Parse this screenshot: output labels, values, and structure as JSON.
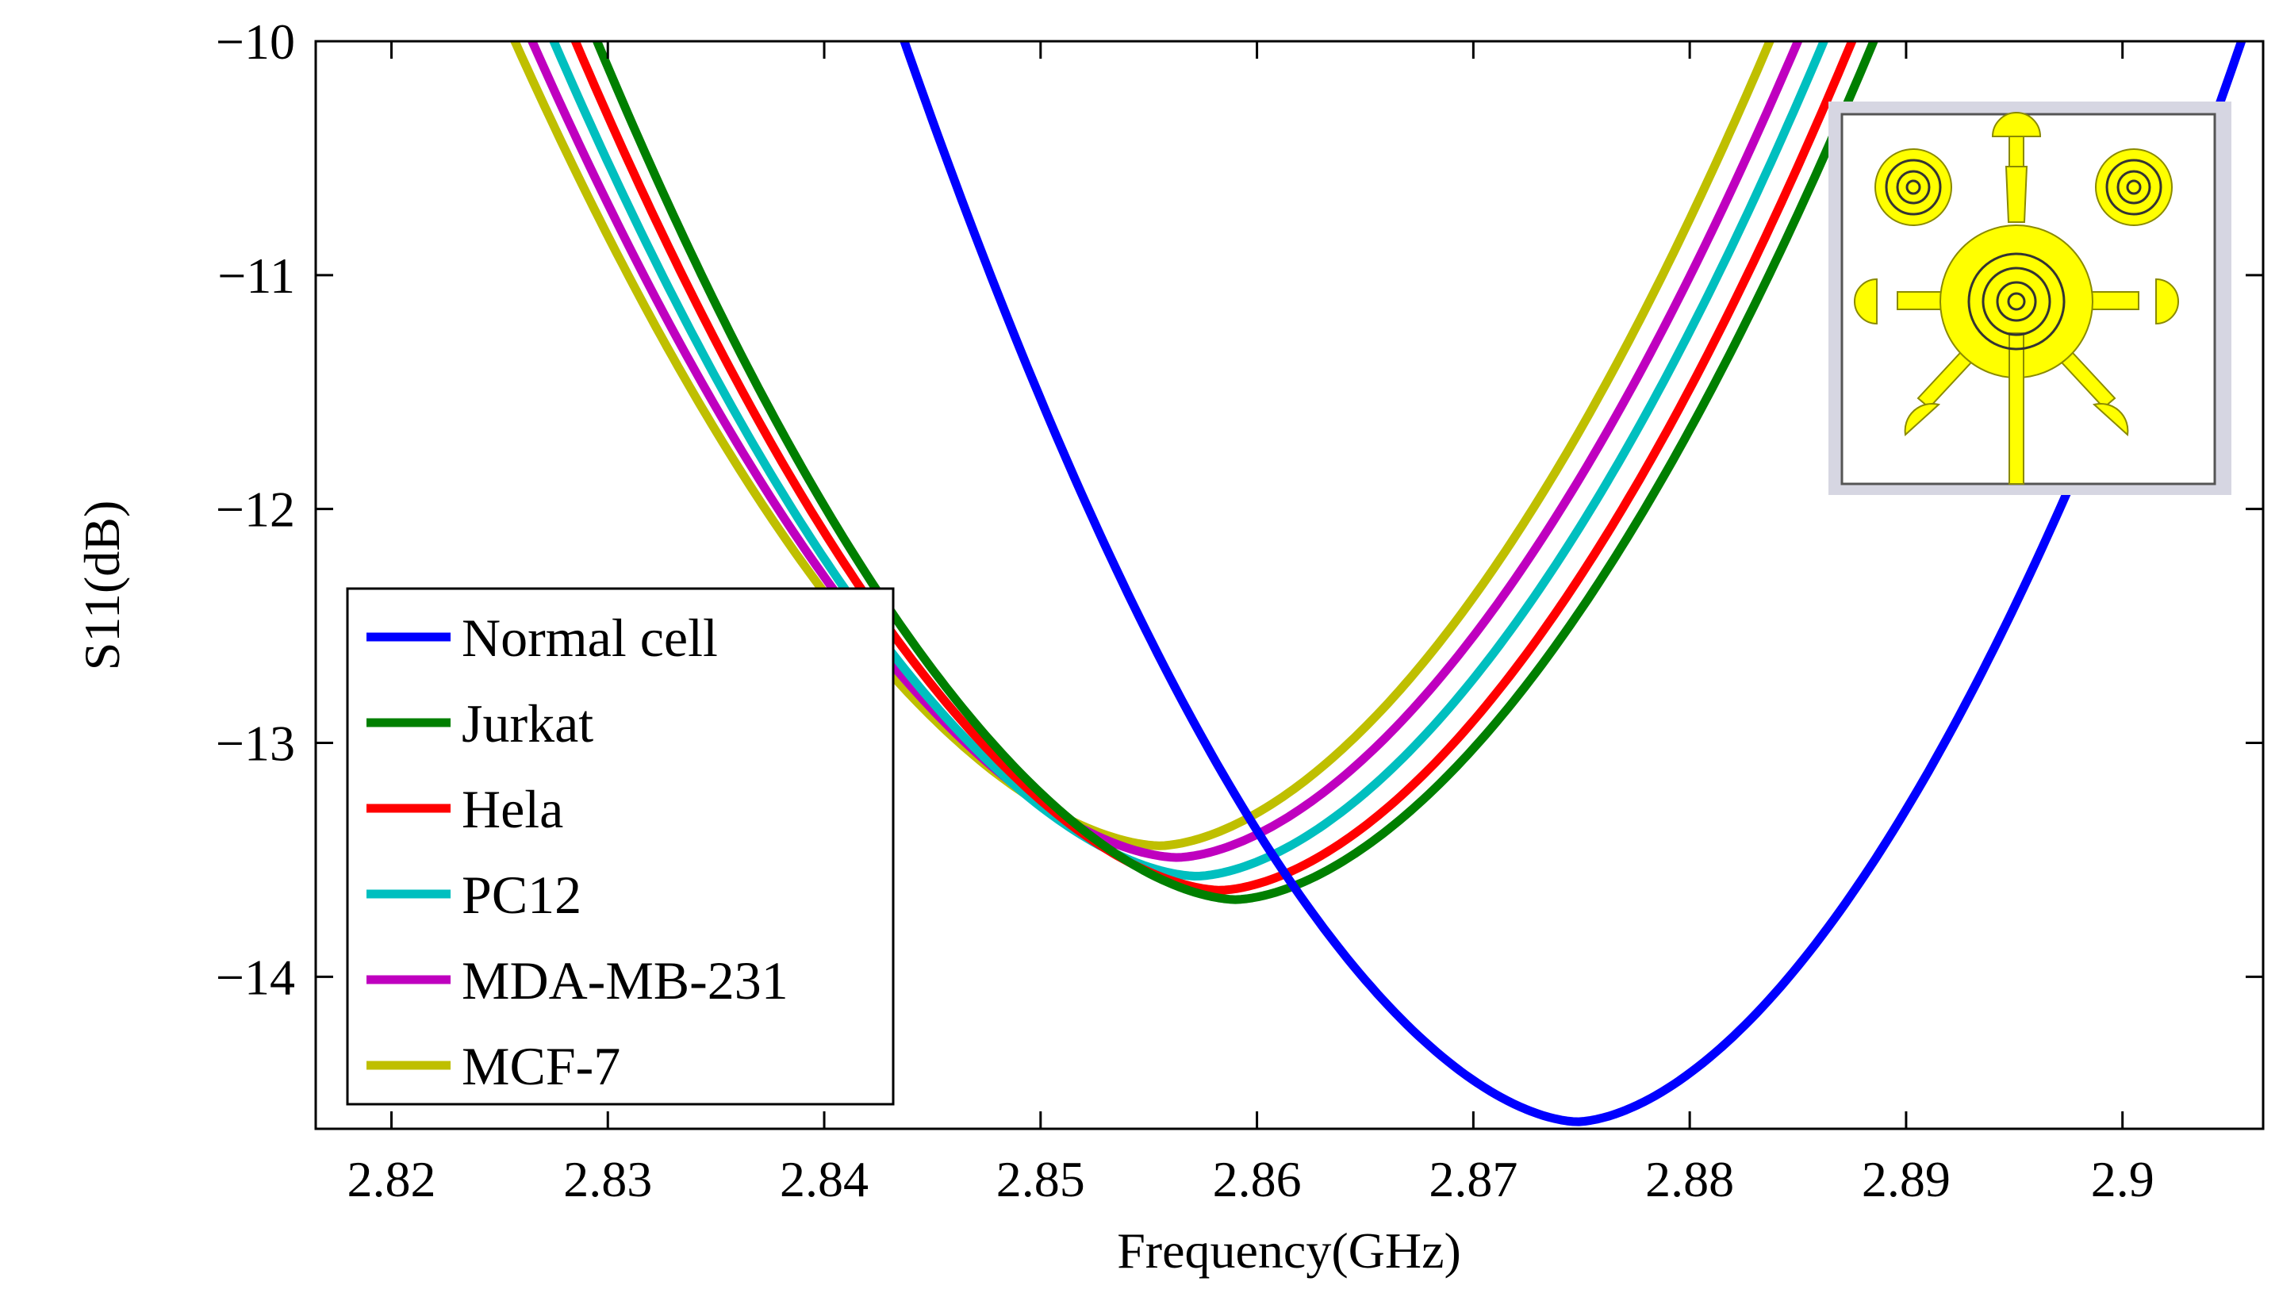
{
  "chart_data": {
    "type": "line",
    "xlabel": "Frequency(GHz)",
    "ylabel": "S11(dB)",
    "xlim": [
      2.8165,
      2.9065
    ],
    "ylim": [
      -14.65,
      -10
    ],
    "x_ticks": [
      {
        "value": 2.82,
        "label": "2.82"
      },
      {
        "value": 2.83,
        "label": "2.83"
      },
      {
        "value": 2.84,
        "label": "2.84"
      },
      {
        "value": 2.85,
        "label": "2.85"
      },
      {
        "value": 2.86,
        "label": "2.86"
      },
      {
        "value": 2.87,
        "label": "2.87"
      },
      {
        "value": 2.88,
        "label": "2.88"
      },
      {
        "value": 2.89,
        "label": "2.89"
      },
      {
        "value": 2.9,
        "label": "2.9"
      }
    ],
    "y_ticks": [
      {
        "value": -10,
        "label": "−10"
      },
      {
        "value": -11,
        "label": "−11"
      },
      {
        "value": -12,
        "label": "−12"
      },
      {
        "value": -13,
        "label": "−13"
      },
      {
        "value": -14,
        "label": "−14"
      }
    ],
    "legend_position": "bottom-left",
    "series": [
      {
        "name": "Normal cell",
        "color": "#0000ff",
        "min_x": 2.8748,
        "min_y": -14.62,
        "x_left": 2.8437,
        "x_right": 2.9055
      },
      {
        "name": "Jurkat",
        "color": "#007f00",
        "min_x": 2.859,
        "min_y": -13.67,
        "x_left": 2.8295,
        "x_right": 2.8885
      },
      {
        "name": "Hela",
        "color": "#ff0000",
        "min_x": 2.8583,
        "min_y": -13.63,
        "x_left": 2.8285,
        "x_right": 2.8875
      },
      {
        "name": "PC12",
        "color": "#00bfbf",
        "min_x": 2.8572,
        "min_y": -13.57,
        "x_left": 2.8275,
        "x_right": 2.8862
      },
      {
        "name": "MDA-MB-231",
        "color": "#bf00bf",
        "min_x": 2.8563,
        "min_y": -13.49,
        "x_left": 2.8265,
        "x_right": 2.885
      },
      {
        "name": "MCF-7",
        "color": "#bfbf00",
        "min_x": 2.8555,
        "min_y": -13.44,
        "x_left": 2.8257,
        "x_right": 2.8837
      }
    ],
    "inset": {
      "description": "antenna layout",
      "fill_color": "#ffff00",
      "frame_color": "#d6d6e2"
    }
  }
}
